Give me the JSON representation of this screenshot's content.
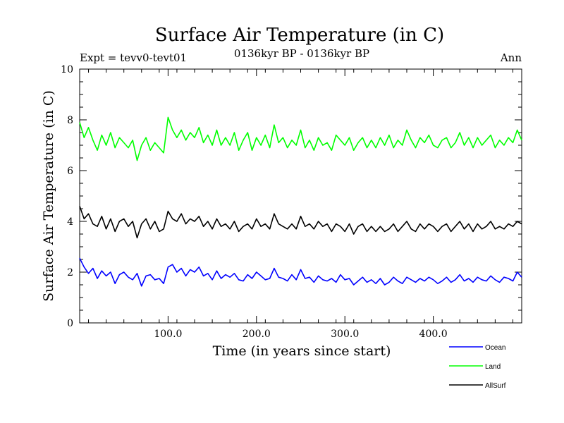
{
  "chart_data": {
    "type": "line",
    "title": "Surface Air Temperature (in C)",
    "subtitle": "0136kyr BP - 0136kyr BP",
    "experiment_label": "Expt = tevv0-tevt01",
    "season_label": "Ann",
    "xlabel": "Time (in years since start)",
    "ylabel": "Surface Air Temperature (in C)",
    "xlim": [
      0,
      500
    ],
    "ylim": [
      0,
      10
    ],
    "x_ticks": [
      100,
      200,
      300,
      400
    ],
    "x_tick_labels": [
      "100.0",
      "200.0",
      "300.0",
      "400.0"
    ],
    "y_ticks": [
      0,
      2,
      4,
      6,
      8,
      10
    ],
    "y_tick_labels": [
      "0",
      "2",
      "4",
      "6",
      "8",
      "10"
    ],
    "grid": false,
    "legend_position": "bottom-right, below plot",
    "series": [
      {
        "name": "Ocean",
        "color": "#0000ff",
        "x": [
          0,
          5,
          10,
          15,
          20,
          25,
          30,
          35,
          40,
          45,
          50,
          55,
          60,
          65,
          70,
          75,
          80,
          85,
          90,
          95,
          100,
          105,
          110,
          115,
          120,
          125,
          130,
          135,
          140,
          145,
          150,
          155,
          160,
          165,
          170,
          175,
          180,
          185,
          190,
          195,
          200,
          205,
          210,
          215,
          220,
          225,
          230,
          235,
          240,
          245,
          250,
          255,
          260,
          265,
          270,
          275,
          280,
          285,
          290,
          295,
          300,
          305,
          310,
          315,
          320,
          325,
          330,
          335,
          340,
          345,
          350,
          355,
          360,
          365,
          370,
          375,
          380,
          385,
          390,
          395,
          400,
          405,
          410,
          415,
          420,
          425,
          430,
          435,
          440,
          445,
          450,
          455,
          460,
          465,
          470,
          475,
          480,
          485,
          490,
          495,
          500
        ],
        "values": [
          2.55,
          2.2,
          1.95,
          2.15,
          1.75,
          2.05,
          1.85,
          2.0,
          1.55,
          1.9,
          2.0,
          1.8,
          1.7,
          1.95,
          1.45,
          1.85,
          1.9,
          1.7,
          1.75,
          1.55,
          2.2,
          2.3,
          2.0,
          2.15,
          1.85,
          2.1,
          2.0,
          2.2,
          1.85,
          1.95,
          1.7,
          2.05,
          1.75,
          1.9,
          1.8,
          1.95,
          1.7,
          1.65,
          1.9,
          1.75,
          2.0,
          1.85,
          1.7,
          1.75,
          2.15,
          1.8,
          1.75,
          1.65,
          1.9,
          1.7,
          2.1,
          1.75,
          1.8,
          1.6,
          1.85,
          1.7,
          1.65,
          1.75,
          1.6,
          1.9,
          1.7,
          1.75,
          1.5,
          1.65,
          1.8,
          1.6,
          1.7,
          1.55,
          1.75,
          1.5,
          1.6,
          1.8,
          1.65,
          1.55,
          1.8,
          1.7,
          1.6,
          1.75,
          1.65,
          1.8,
          1.7,
          1.55,
          1.65,
          1.8,
          1.6,
          1.7,
          1.9,
          1.65,
          1.75,
          1.6,
          1.8,
          1.7,
          1.65,
          1.85,
          1.7,
          1.6,
          1.8,
          1.75,
          1.65,
          2.0,
          1.8
        ]
      },
      {
        "name": "Land",
        "color": "#00ff00",
        "x": [
          0,
          5,
          10,
          15,
          20,
          25,
          30,
          35,
          40,
          45,
          50,
          55,
          60,
          65,
          70,
          75,
          80,
          85,
          90,
          95,
          100,
          105,
          110,
          115,
          120,
          125,
          130,
          135,
          140,
          145,
          150,
          155,
          160,
          165,
          170,
          175,
          180,
          185,
          190,
          195,
          200,
          205,
          210,
          215,
          220,
          225,
          230,
          235,
          240,
          245,
          250,
          255,
          260,
          265,
          270,
          275,
          280,
          285,
          290,
          295,
          300,
          305,
          310,
          315,
          320,
          325,
          330,
          335,
          340,
          345,
          350,
          355,
          360,
          365,
          370,
          375,
          380,
          385,
          390,
          395,
          400,
          405,
          410,
          415,
          420,
          425,
          430,
          435,
          440,
          445,
          450,
          455,
          460,
          465,
          470,
          475,
          480,
          485,
          490,
          495,
          500
        ],
        "values": [
          7.9,
          7.3,
          7.7,
          7.2,
          6.8,
          7.4,
          7.0,
          7.5,
          6.9,
          7.3,
          7.1,
          6.9,
          7.2,
          6.4,
          7.0,
          7.3,
          6.8,
          7.1,
          6.9,
          6.7,
          8.1,
          7.6,
          7.3,
          7.6,
          7.2,
          7.5,
          7.3,
          7.7,
          7.1,
          7.4,
          7.0,
          7.6,
          7.0,
          7.3,
          7.0,
          7.5,
          6.8,
          7.2,
          7.5,
          6.8,
          7.3,
          7.0,
          7.4,
          6.9,
          7.8,
          7.1,
          7.3,
          6.9,
          7.2,
          7.0,
          7.6,
          6.9,
          7.2,
          6.8,
          7.3,
          7.0,
          7.1,
          6.8,
          7.4,
          7.2,
          7.0,
          7.3,
          6.8,
          7.1,
          7.3,
          6.9,
          7.2,
          6.9,
          7.3,
          7.0,
          7.4,
          6.9,
          7.2,
          7.0,
          7.6,
          7.2,
          6.9,
          7.3,
          7.1,
          7.4,
          7.0,
          6.9,
          7.2,
          7.3,
          6.9,
          7.1,
          7.5,
          7.0,
          7.3,
          6.9,
          7.3,
          7.0,
          7.2,
          7.4,
          6.9,
          7.2,
          7.0,
          7.3,
          7.1,
          7.6,
          7.2
        ]
      },
      {
        "name": "AllSurf",
        "color": "#000000",
        "x": [
          0,
          5,
          10,
          15,
          20,
          25,
          30,
          35,
          40,
          45,
          50,
          55,
          60,
          65,
          70,
          75,
          80,
          85,
          90,
          95,
          100,
          105,
          110,
          115,
          120,
          125,
          130,
          135,
          140,
          145,
          150,
          155,
          160,
          165,
          170,
          175,
          180,
          185,
          190,
          195,
          200,
          205,
          210,
          215,
          220,
          225,
          230,
          235,
          240,
          245,
          250,
          255,
          260,
          265,
          270,
          275,
          280,
          285,
          290,
          295,
          300,
          305,
          310,
          315,
          320,
          325,
          330,
          335,
          340,
          345,
          350,
          355,
          360,
          365,
          370,
          375,
          380,
          385,
          390,
          395,
          400,
          405,
          410,
          415,
          420,
          425,
          430,
          435,
          440,
          445,
          450,
          455,
          460,
          465,
          470,
          475,
          480,
          485,
          490,
          495,
          500
        ],
        "values": [
          4.6,
          4.1,
          4.3,
          3.9,
          3.8,
          4.2,
          3.7,
          4.1,
          3.6,
          4.0,
          4.1,
          3.8,
          4.0,
          3.35,
          3.9,
          4.1,
          3.7,
          4.0,
          3.6,
          3.7,
          4.4,
          4.1,
          4.0,
          4.3,
          3.9,
          4.1,
          4.0,
          4.2,
          3.8,
          4.0,
          3.7,
          4.1,
          3.8,
          3.9,
          3.7,
          4.0,
          3.6,
          3.8,
          3.9,
          3.7,
          4.1,
          3.8,
          3.9,
          3.7,
          4.3,
          3.9,
          3.8,
          3.7,
          3.9,
          3.7,
          4.2,
          3.8,
          3.9,
          3.7,
          4.0,
          3.8,
          3.9,
          3.6,
          3.9,
          3.8,
          3.6,
          3.9,
          3.5,
          3.8,
          3.9,
          3.6,
          3.8,
          3.6,
          3.8,
          3.6,
          3.7,
          3.9,
          3.6,
          3.8,
          4.0,
          3.7,
          3.6,
          3.9,
          3.7,
          3.9,
          3.8,
          3.6,
          3.8,
          3.9,
          3.6,
          3.8,
          4.0,
          3.7,
          3.9,
          3.6,
          3.9,
          3.7,
          3.8,
          4.0,
          3.7,
          3.8,
          3.7,
          3.9,
          3.8,
          4.0,
          3.9
        ]
      }
    ]
  }
}
